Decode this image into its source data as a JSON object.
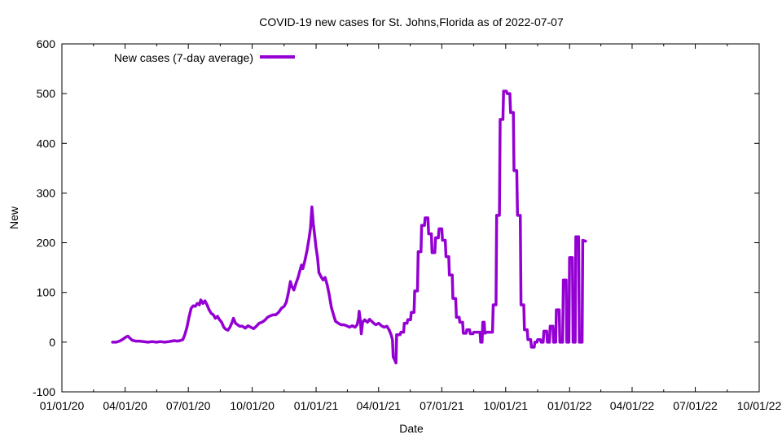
{
  "chart_data": {
    "type": "line",
    "title": "COVID-19 new cases for St. Johns,Florida as of 2022-07-07",
    "xlabel": "Date",
    "ylabel": "New",
    "ylim": [
      -100,
      600
    ],
    "yticks": [
      -100,
      0,
      100,
      200,
      300,
      400,
      500,
      600
    ],
    "xlim_days": [
      0,
      1004
    ],
    "xticks": [
      {
        "label": "01/01/20",
        "day": 0
      },
      {
        "label": "04/01/20",
        "day": 91
      },
      {
        "label": "07/01/20",
        "day": 182
      },
      {
        "label": "10/01/20",
        "day": 274
      },
      {
        "label": "01/01/21",
        "day": 366
      },
      {
        "label": "04/01/21",
        "day": 456
      },
      {
        "label": "07/01/21",
        "day": 547
      },
      {
        "label": "10/01/21",
        "day": 639
      },
      {
        "label": "01/01/22",
        "day": 731
      },
      {
        "label": "04/01/22",
        "day": 821
      },
      {
        "label": "07/01/22",
        "day": 912
      },
      {
        "label": "10/01/22",
        "day": 1004
      }
    ],
    "legend": {
      "position": "top-left",
      "label": "New cases (7-day average)"
    },
    "series": [
      {
        "name": "New cases (7-day average)",
        "color": "#9400d3",
        "points": [
          [
            73,
            0
          ],
          [
            78,
            0
          ],
          [
            83,
            2
          ],
          [
            88,
            6
          ],
          [
            92,
            10
          ],
          [
            95,
            12
          ],
          [
            98,
            8
          ],
          [
            101,
            4
          ],
          [
            106,
            2
          ],
          [
            112,
            2
          ],
          [
            118,
            1
          ],
          [
            124,
            0
          ],
          [
            130,
            1
          ],
          [
            136,
            0
          ],
          [
            142,
            1
          ],
          [
            148,
            0
          ],
          [
            154,
            1
          ],
          [
            158,
            2
          ],
          [
            162,
            3
          ],
          [
            166,
            2
          ],
          [
            170,
            3
          ],
          [
            174,
            5
          ],
          [
            177,
            15
          ],
          [
            180,
            30
          ],
          [
            183,
            50
          ],
          [
            186,
            68
          ],
          [
            189,
            73
          ],
          [
            192,
            72
          ],
          [
            195,
            78
          ],
          [
            198,
            75
          ],
          [
            200,
            85
          ],
          [
            203,
            78
          ],
          [
            206,
            83
          ],
          [
            209,
            75
          ],
          [
            212,
            65
          ],
          [
            215,
            58
          ],
          [
            218,
            55
          ],
          [
            221,
            48
          ],
          [
            224,
            52
          ],
          [
            227,
            45
          ],
          [
            230,
            40
          ],
          [
            233,
            30
          ],
          [
            236,
            26
          ],
          [
            239,
            24
          ],
          [
            242,
            30
          ],
          [
            245,
            40
          ],
          [
            247,
            48
          ],
          [
            250,
            38
          ],
          [
            253,
            35
          ],
          [
            256,
            32
          ],
          [
            260,
            32
          ],
          [
            264,
            28
          ],
          [
            268,
            33
          ],
          [
            272,
            30
          ],
          [
            276,
            27
          ],
          [
            280,
            32
          ],
          [
            284,
            38
          ],
          [
            288,
            40
          ],
          [
            292,
            44
          ],
          [
            296,
            50
          ],
          [
            300,
            53
          ],
          [
            304,
            55
          ],
          [
            308,
            55
          ],
          [
            312,
            60
          ],
          [
            316,
            68
          ],
          [
            320,
            72
          ],
          [
            323,
            80
          ],
          [
            326,
            98
          ],
          [
            329,
            122
          ],
          [
            331,
            112
          ],
          [
            334,
            105
          ],
          [
            337,
            118
          ],
          [
            340,
            130
          ],
          [
            343,
            145
          ],
          [
            345,
            155
          ],
          [
            347,
            148
          ],
          [
            350,
            165
          ],
          [
            353,
            185
          ],
          [
            356,
            210
          ],
          [
            358,
            230
          ],
          [
            360,
            272
          ],
          [
            362,
            238
          ],
          [
            364,
            215
          ],
          [
            366,
            190
          ],
          [
            368,
            170
          ],
          [
            370,
            140
          ],
          [
            373,
            132
          ],
          [
            376,
            125
          ],
          [
            379,
            130
          ],
          [
            382,
            115
          ],
          [
            385,
            95
          ],
          [
            388,
            70
          ],
          [
            391,
            55
          ],
          [
            394,
            42
          ],
          [
            398,
            38
          ],
          [
            402,
            35
          ],
          [
            406,
            35
          ],
          [
            410,
            33
          ],
          [
            414,
            30
          ],
          [
            418,
            33
          ],
          [
            422,
            30
          ],
          [
            425,
            35
          ],
          [
            427,
            48
          ],
          [
            428,
            62
          ],
          [
            430,
            40
          ],
          [
            431,
            17
          ],
          [
            433,
            40
          ],
          [
            436,
            45
          ],
          [
            440,
            40
          ],
          [
            443,
            46
          ],
          [
            446,
            42
          ],
          [
            449,
            38
          ],
          [
            452,
            35
          ],
          [
            456,
            38
          ],
          [
            460,
            33
          ],
          [
            464,
            30
          ],
          [
            468,
            32
          ],
          [
            471,
            25
          ],
          [
            474,
            15
          ],
          [
            476,
            5
          ],
          [
            477,
            -30
          ],
          [
            479,
            -35
          ],
          [
            481,
            -42
          ],
          [
            482,
            15
          ],
          [
            487,
            15
          ],
          [
            488,
            20
          ],
          [
            492,
            20
          ],
          [
            493,
            38
          ],
          [
            497,
            38
          ],
          [
            498,
            45
          ],
          [
            502,
            45
          ],
          [
            503,
            60
          ],
          [
            507,
            60
          ],
          [
            508,
            103
          ],
          [
            512,
            103
          ],
          [
            513,
            182
          ],
          [
            517,
            182
          ],
          [
            518,
            235
          ],
          [
            522,
            235
          ],
          [
            523,
            250
          ],
          [
            527,
            250
          ],
          [
            528,
            218
          ],
          [
            532,
            218
          ],
          [
            533,
            180
          ],
          [
            537,
            180
          ],
          [
            538,
            210
          ],
          [
            542,
            210
          ],
          [
            543,
            228
          ],
          [
            547,
            228
          ],
          [
            548,
            205
          ],
          [
            552,
            205
          ],
          [
            553,
            172
          ],
          [
            557,
            172
          ],
          [
            558,
            135
          ],
          [
            562,
            135
          ],
          [
            563,
            88
          ],
          [
            567,
            88
          ],
          [
            568,
            50
          ],
          [
            572,
            50
          ],
          [
            573,
            40
          ],
          [
            577,
            40
          ],
          [
            578,
            18
          ],
          [
            582,
            18
          ],
          [
            583,
            25
          ],
          [
            587,
            25
          ],
          [
            588,
            17
          ],
          [
            592,
            17
          ],
          [
            593,
            20
          ],
          [
            602,
            20
          ],
          [
            603,
            0
          ],
          [
            605,
            0
          ],
          [
            606,
            40
          ],
          [
            608,
            40
          ],
          [
            609,
            18
          ],
          [
            612,
            20
          ],
          [
            620,
            20
          ],
          [
            621,
            75
          ],
          [
            625,
            75
          ],
          [
            626,
            255
          ],
          [
            630,
            255
          ],
          [
            631,
            448
          ],
          [
            635,
            448
          ],
          [
            636,
            505
          ],
          [
            640,
            505
          ],
          [
            641,
            500
          ],
          [
            645,
            500
          ],
          [
            646,
            462
          ],
          [
            650,
            462
          ],
          [
            651,
            345
          ],
          [
            655,
            345
          ],
          [
            656,
            255
          ],
          [
            660,
            255
          ],
          [
            661,
            75
          ],
          [
            665,
            75
          ],
          [
            666,
            25
          ],
          [
            670,
            25
          ],
          [
            671,
            5
          ],
          [
            675,
            5
          ],
          [
            676,
            -10
          ],
          [
            680,
            -10
          ],
          [
            681,
            0
          ],
          [
            684,
            0
          ],
          [
            685,
            5
          ],
          [
            689,
            5
          ],
          [
            690,
            0
          ],
          [
            693,
            0
          ],
          [
            694,
            22
          ],
          [
            698,
            22
          ],
          [
            699,
            0
          ],
          [
            702,
            0
          ],
          [
            703,
            32
          ],
          [
            707,
            32
          ],
          [
            708,
            0
          ],
          [
            711,
            0
          ],
          [
            712,
            65
          ],
          [
            716,
            65
          ],
          [
            717,
            0
          ],
          [
            721,
            0
          ],
          [
            722,
            125
          ],
          [
            726,
            125
          ],
          [
            727,
            0
          ],
          [
            730,
            0
          ],
          [
            731,
            170
          ],
          [
            735,
            170
          ],
          [
            736,
            0
          ],
          [
            739,
            0
          ],
          [
            740,
            212
          ],
          [
            744,
            212
          ],
          [
            745,
            0
          ],
          [
            749,
            0
          ],
          [
            750,
            205
          ],
          [
            754,
            203
          ]
        ]
      }
    ]
  }
}
